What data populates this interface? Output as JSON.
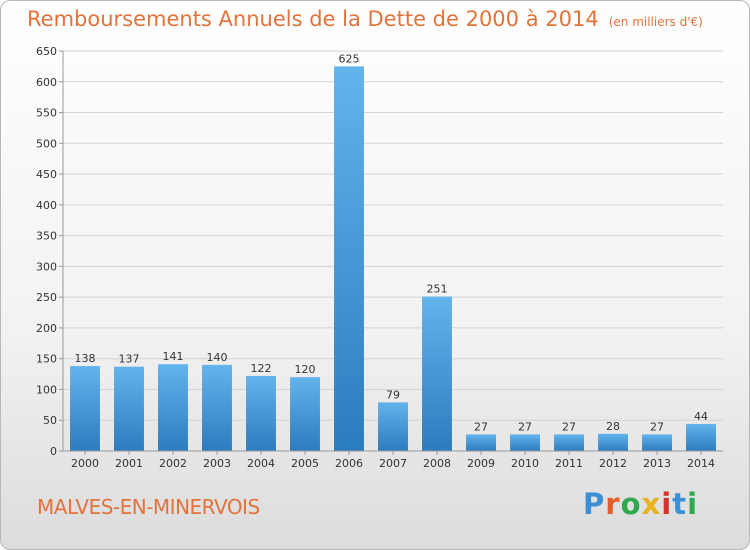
{
  "header": {
    "title": "Remboursements Annuels de la Dette de 2000 à 2014",
    "subtitle": "(en milliers d'€)"
  },
  "footer": {
    "commune": "MALVES-EN-MINERVOIS",
    "logo": "Proxiti"
  },
  "colors": {
    "accent": "#e2733a",
    "bar_light": "#62b4ec",
    "bar_dark": "#2a7cbf",
    "grid": "#d4d4d4"
  },
  "chart_data": {
    "type": "bar",
    "title": "Remboursements Annuels de la Dette de 2000 à 2014",
    "subtitle": "(en milliers d'€)",
    "xlabel": "",
    "ylabel": "",
    "categories": [
      "2000",
      "2001",
      "2002",
      "2003",
      "2004",
      "2005",
      "2006",
      "2007",
      "2008",
      "2009",
      "2010",
      "2011",
      "2012",
      "2013",
      "2014"
    ],
    "values": [
      138,
      137,
      141,
      140,
      122,
      120,
      625,
      79,
      251,
      27,
      27,
      27,
      28,
      27,
      44
    ],
    "ylim": [
      0,
      650
    ],
    "yticks": [
      0,
      50,
      100,
      150,
      200,
      250,
      300,
      350,
      400,
      450,
      500,
      550,
      600,
      650
    ],
    "grid": true,
    "legend": "none"
  }
}
